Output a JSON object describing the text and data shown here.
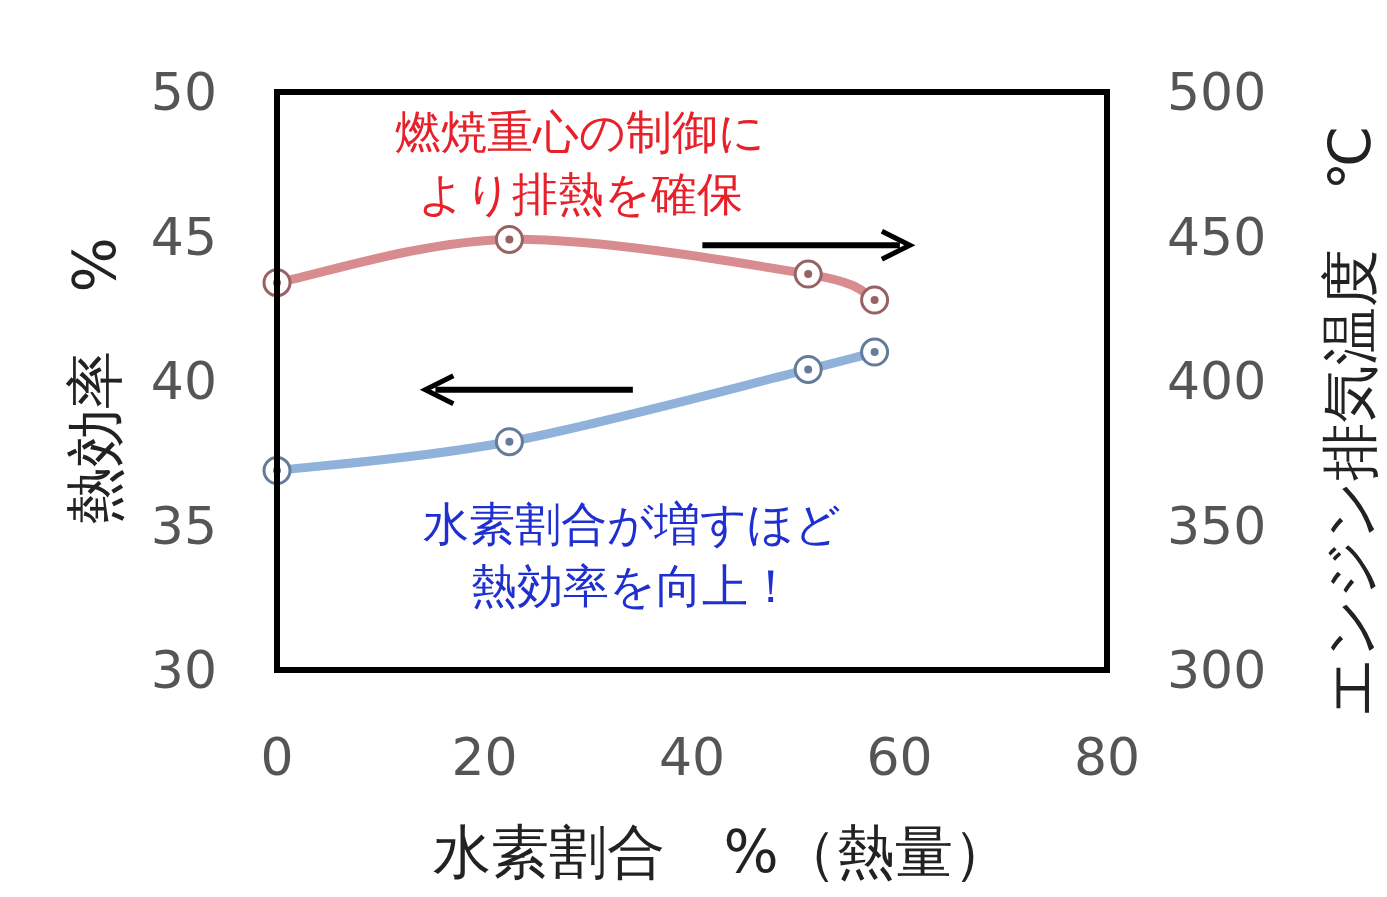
{
  "chart_data": {
    "type": "line",
    "xlabel": "水素割合　%（熱量）",
    "ylabel": "熱効率　%",
    "y2label": "エンジン排気温度　℃",
    "xlim": [
      0,
      80
    ],
    "xticks": [
      0,
      20,
      40,
      60,
      80
    ],
    "ylim": [
      30,
      50
    ],
    "yticks": [
      30,
      35,
      40,
      45,
      50
    ],
    "y2lim": [
      300,
      500
    ],
    "y2ticks": [
      300,
      350,
      400,
      450,
      500
    ],
    "marker": "circle",
    "series": [
      {
        "color": "#d98c8f",
        "axis": "y2",
        "x": [
          0,
          22.4,
          51.2,
          57.6
        ],
        "values": [
          434,
          449,
          437,
          428
        ]
      },
      {
        "color": "#8fb1da",
        "x": [
          0,
          22.4,
          51.2,
          57.6
        ],
        "values": [
          36.9,
          37.9,
          40.4,
          41.0
        ]
      }
    ],
    "annotations": [
      "燃焼重心の制御に",
      "より排熱を確保",
      "水素割合が増すほど",
      "熱効率を向上！"
    ]
  }
}
